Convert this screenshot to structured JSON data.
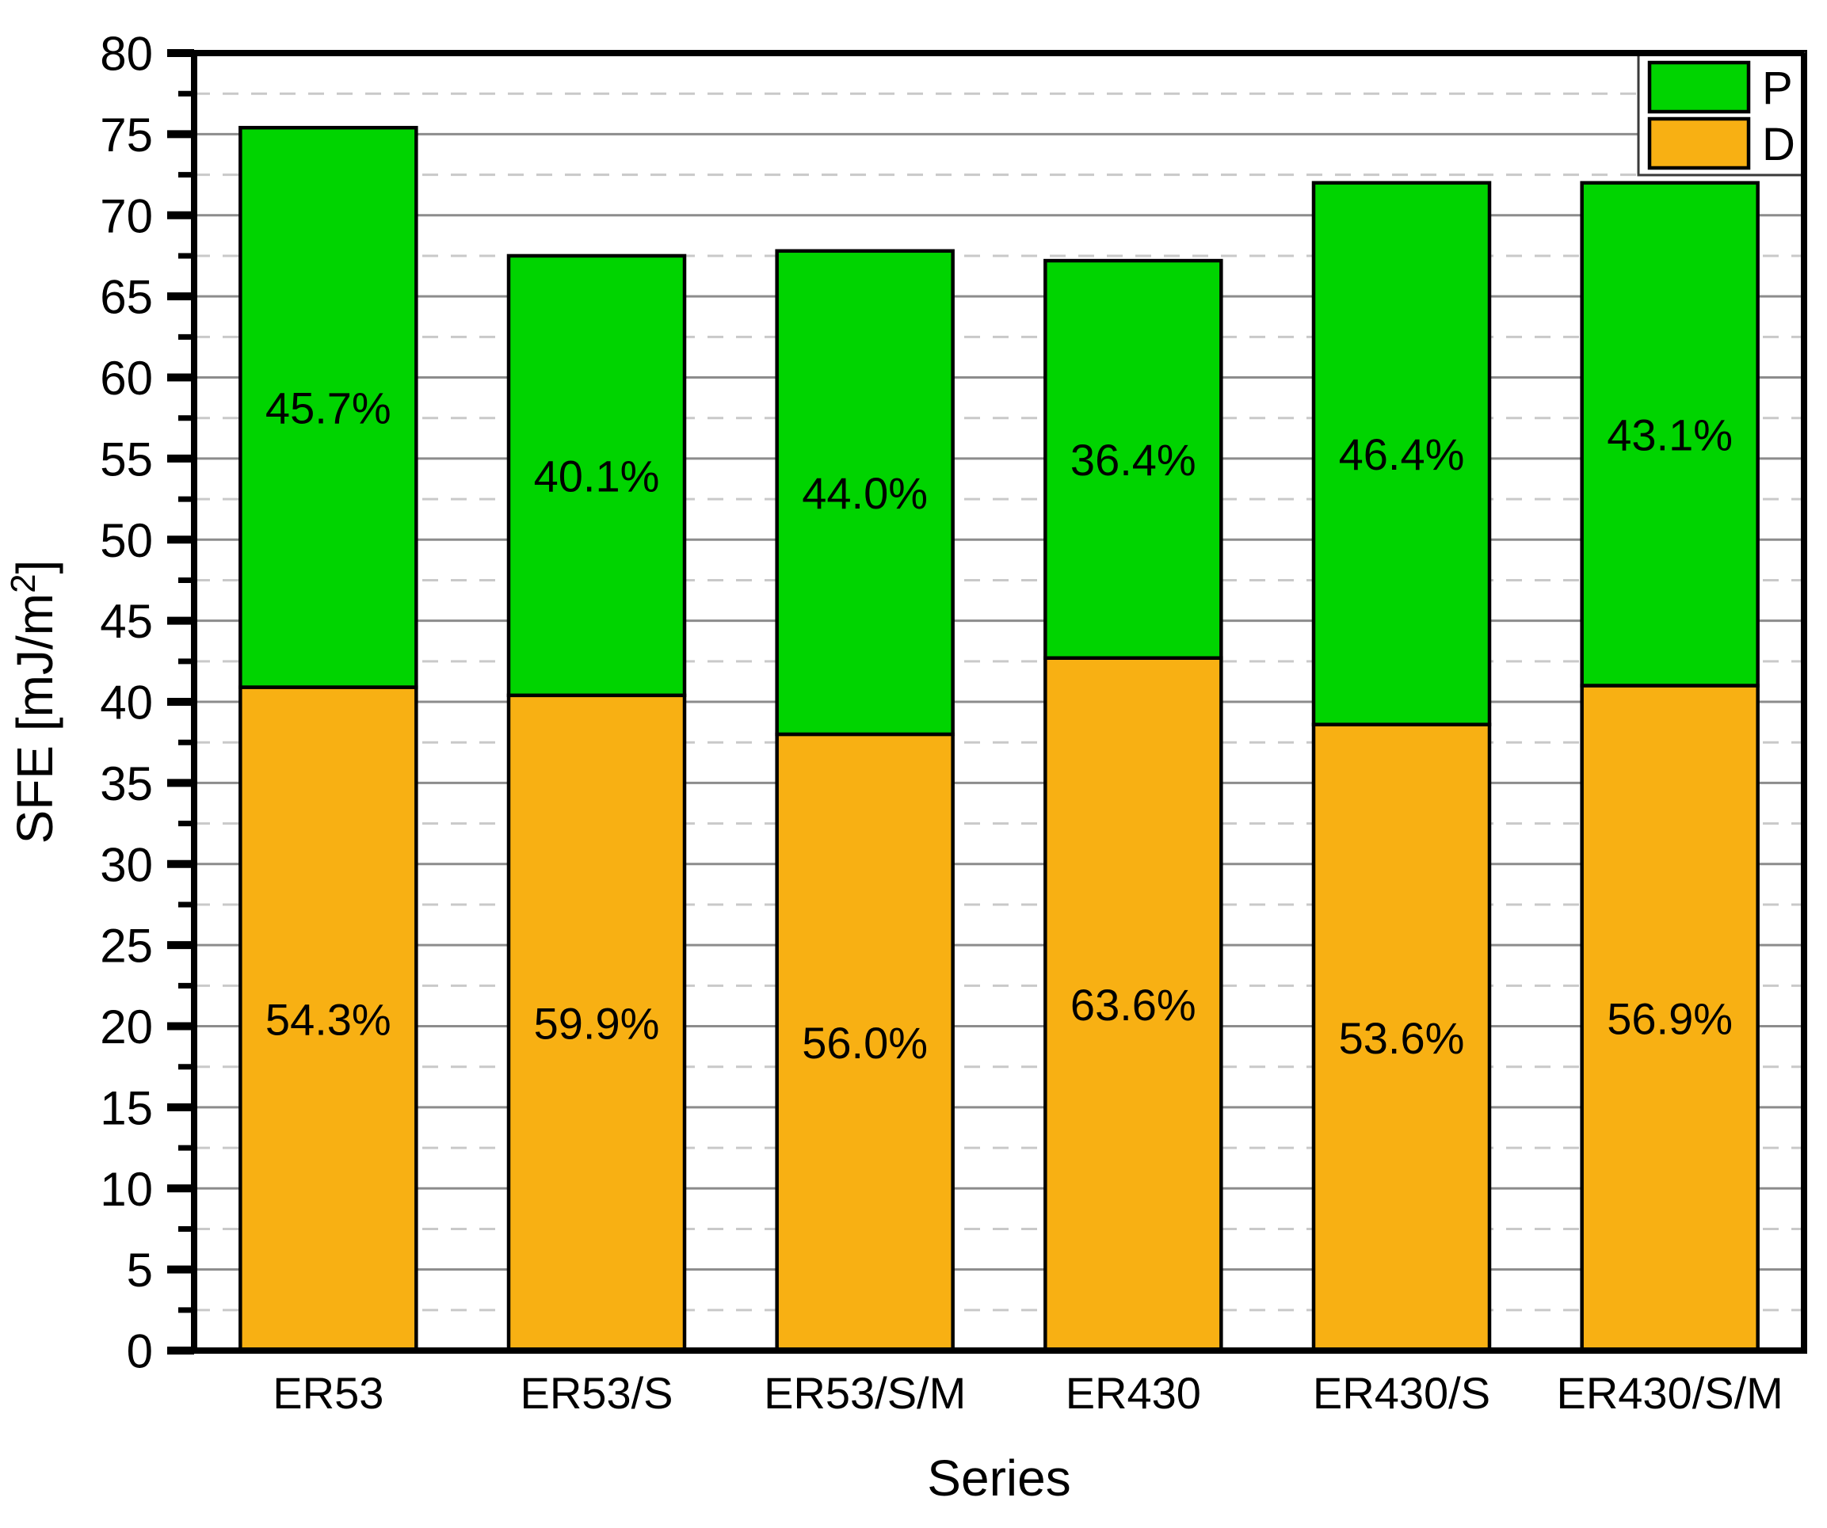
{
  "chart_data": {
    "type": "bar",
    "stacked": true,
    "title": "",
    "xlabel": "Series",
    "ylabel": "SFE [mJ/m2]",
    "ylabel_parts": {
      "main": "SFE [mJ/m",
      "sup": "2",
      "end": "]"
    },
    "ylim": [
      0,
      80
    ],
    "ytick_major_step": 5,
    "ytick_minor_step": 2.5,
    "grid": "horizontal: solid gray at major ticks, dashed light gray at minor ticks",
    "legend_position": "top-right",
    "yticks": [
      "0",
      "5",
      "10",
      "15",
      "20",
      "25",
      "30",
      "35",
      "40",
      "45",
      "50",
      "55",
      "60",
      "65",
      "70",
      "75",
      "80"
    ],
    "categories": [
      "ER53",
      "ER53/S",
      "ER53/S/M",
      "ER430",
      "ER430/S",
      "ER430/S/M"
    ],
    "series": [
      {
        "name": "D",
        "color": "#F8B013",
        "values": [
          40.9,
          40.4,
          38.0,
          42.7,
          38.6,
          41.0
        ],
        "segment_labels": [
          "54.3%",
          "59.9%",
          "56.0%",
          "63.6%",
          "53.6%",
          "56.9%"
        ]
      },
      {
        "name": "P",
        "color": "#00D400",
        "values": [
          34.5,
          27.1,
          29.8,
          24.5,
          33.4,
          31.0
        ],
        "segment_labels": [
          "45.7%",
          "40.1%",
          "44.0%",
          "36.4%",
          "46.4%",
          "43.1%"
        ]
      }
    ],
    "totals": [
      75.4,
      67.5,
      67.8,
      67.2,
      72.0,
      72.0
    ],
    "legend": [
      {
        "label": "P",
        "color": "#00D400"
      },
      {
        "label": "D",
        "color": "#F8B013"
      }
    ]
  },
  "colors": {
    "bar_green": "#00D400",
    "bar_orange": "#F8B013",
    "bar_border": "#000000",
    "frame": "#000000",
    "grid_major": "#8C8C8C",
    "grid_minor": "#C9C9C9",
    "background": "#FFFFFF",
    "legend_border": "#3A3A3A"
  }
}
